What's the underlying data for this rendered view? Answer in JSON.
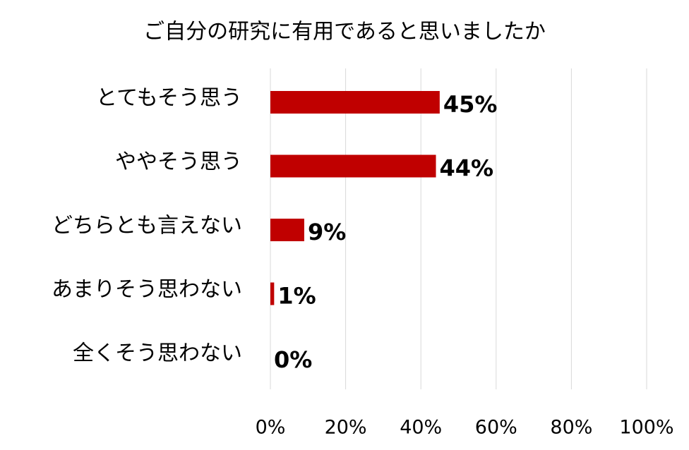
{
  "chart_data": {
    "type": "bar",
    "orientation": "horizontal",
    "title": "ご自分の研究に有用であると思いましたか",
    "categories": [
      "とてもそう思う",
      "ややそう思う",
      "どちらとも言えない",
      "あまりそう思わない",
      "全くそう思わない"
    ],
    "values": [
      45,
      44,
      9,
      1,
      0
    ],
    "value_labels": [
      "45%",
      "44%",
      "9%",
      "1%",
      "0%"
    ],
    "color": "#c00000",
    "xlim": [
      0,
      100
    ],
    "xticks": [
      {
        "value": 0,
        "label": "0%"
      },
      {
        "value": 20,
        "label": "20%"
      },
      {
        "value": 40,
        "label": "40%"
      },
      {
        "value": 60,
        "label": "60%"
      },
      {
        "value": 80,
        "label": "80%"
      },
      {
        "value": 100,
        "label": "100%"
      }
    ],
    "grid": true
  }
}
